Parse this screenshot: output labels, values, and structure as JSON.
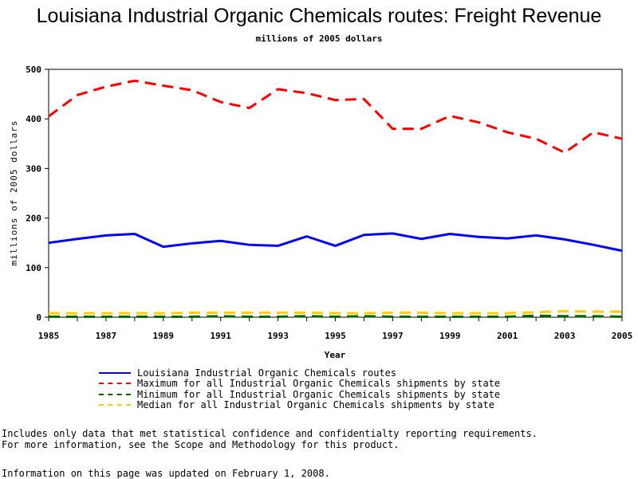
{
  "title": "Louisiana Industrial Organic Chemicals routes: Freight Revenue",
  "subtitle": "millions of 2005 dollars",
  "notes": [
    "Includes only data that met statistical confidence and confidentialty reporting requirements.",
    "For more information, see the Scope and Methodology for this product."
  ],
  "updated": "Information on this page was updated on February 1, 2008.",
  "chart_data": {
    "type": "line",
    "title": "Louisiana Industrial Organic Chemicals routes: Freight Revenue",
    "subtitle": "millions of 2005 dollars",
    "xlabel": "Year",
    "ylabel": "millions of 2005 dollars",
    "xlim": [
      1985,
      2005
    ],
    "ylim": [
      0,
      500
    ],
    "x_ticks": [
      "1985",
      "1987",
      "1989",
      "1991",
      "1993",
      "1995",
      "1997",
      "1999",
      "2001",
      "2003",
      "2005"
    ],
    "y_ticks": [
      "0",
      "100",
      "200",
      "300",
      "400",
      "500"
    ],
    "x": [
      1985,
      1986,
      1987,
      1988,
      1989,
      1990,
      1991,
      1992,
      1993,
      1994,
      1995,
      1996,
      1997,
      1998,
      1999,
      2000,
      2001,
      2002,
      2003,
      2004,
      2005
    ],
    "grid": false,
    "legend_position": "bottom",
    "series": [
      {
        "name": "Louisiana Industrial Organic Chemicals routes",
        "color": "#0000ff",
        "style": "solid",
        "values": [
          150,
          158,
          165,
          168,
          142,
          149,
          154,
          146,
          144,
          163,
          144,
          166,
          169,
          158,
          168,
          162,
          159,
          165,
          157,
          146,
          134
        ]
      },
      {
        "name": "Maximum for all Industrial Organic Chemicals shipments by state",
        "color": "#ff0000",
        "style": "dashed",
        "values": [
          405,
          448,
          465,
          477,
          467,
          458,
          434,
          422,
          460,
          452,
          438,
          440,
          380,
          380,
          406,
          393,
          373,
          360,
          332,
          373,
          360
        ]
      },
      {
        "name": "Minimum for all Industrial Organic Chemicals shipments by state",
        "color": "#006400",
        "style": "dashed",
        "values": [
          1,
          1,
          1,
          1,
          1,
          1,
          2,
          1,
          1,
          2,
          1,
          2,
          1,
          1,
          1,
          1,
          1,
          3,
          2,
          2,
          1
        ]
      },
      {
        "name": "Median for all Industrial Organic Chemicals shipments by state",
        "color": "#ffcc00",
        "style": "dashed",
        "values": [
          8,
          8,
          8,
          8,
          8,
          9,
          9,
          9,
          9,
          9,
          8,
          8,
          9,
          9,
          8,
          8,
          8,
          10,
          12,
          11,
          11
        ]
      }
    ]
  }
}
